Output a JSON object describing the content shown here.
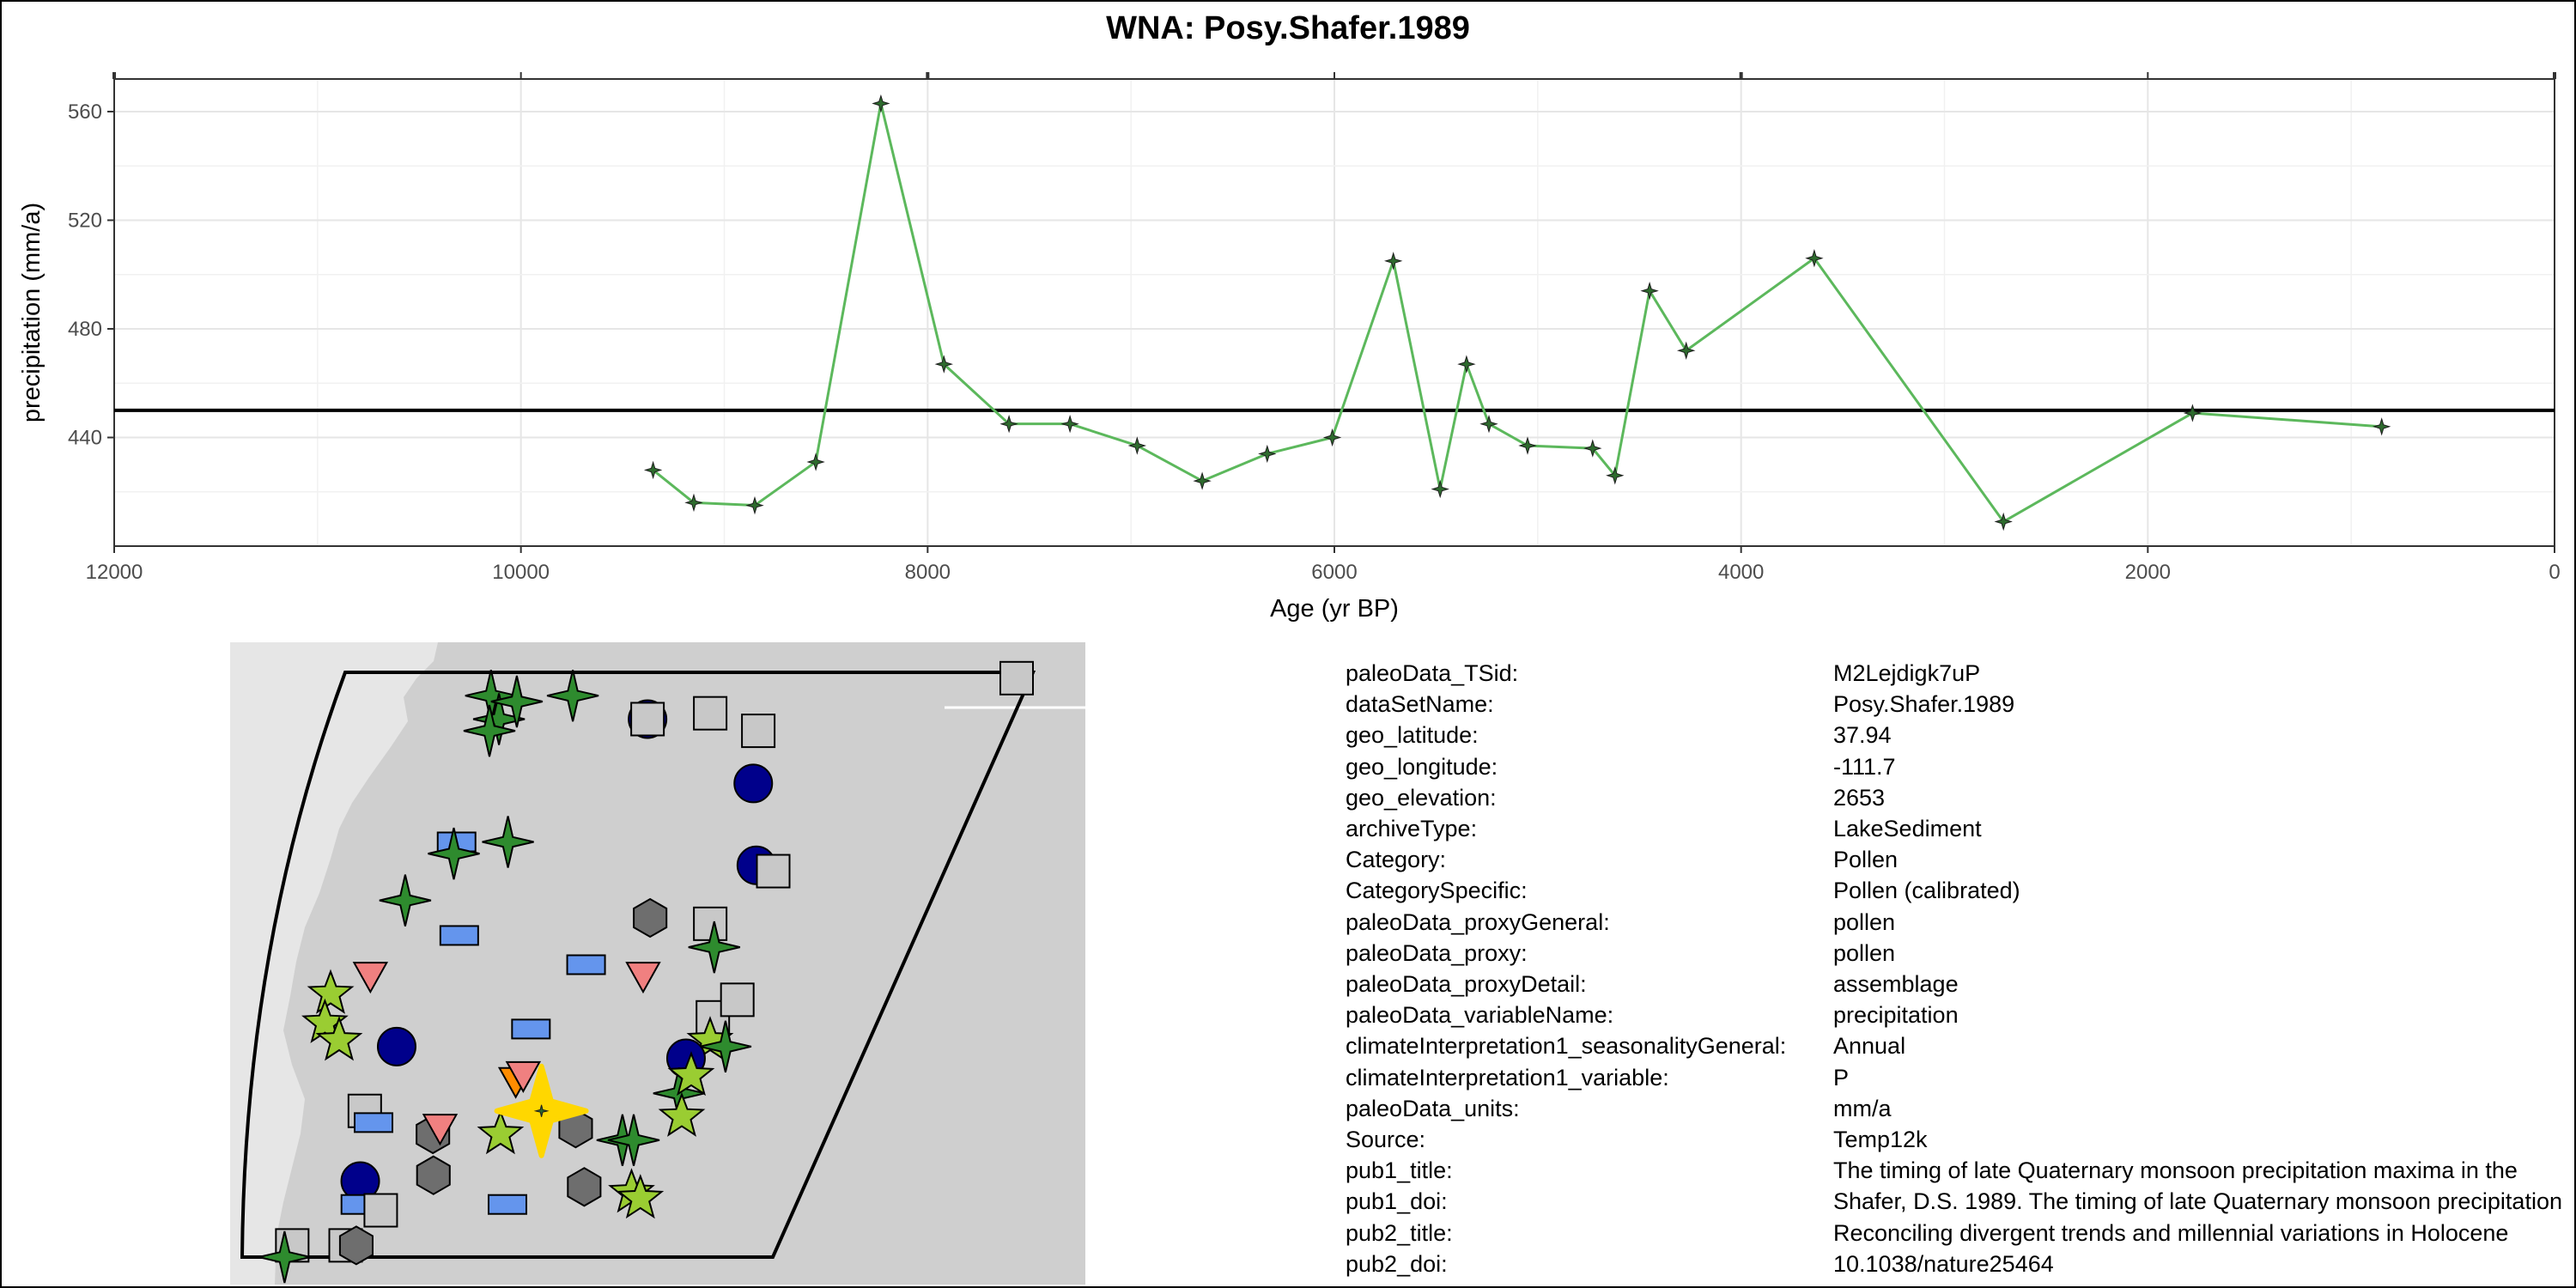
{
  "chart_data": {
    "type": "line",
    "title": "WNA: Posy.Shafer.1989",
    "xlabel": "Age (yr BP)",
    "ylabel": "precipitation (mm/a)",
    "xlim": [
      12000,
      0
    ],
    "x_reversed": true,
    "ylim": [
      400,
      572
    ],
    "xticks": [
      12000,
      10000,
      8000,
      6000,
      4000,
      2000,
      0
    ],
    "yticks": [
      440,
      480,
      520,
      560
    ],
    "reference_line_y": 450,
    "grid": true,
    "series": [
      {
        "color": "#5cb85c",
        "marker_color": "#2e6b2e",
        "x": [
          9350,
          9150,
          8850,
          8550,
          8230,
          7920,
          7600,
          7300,
          6970,
          6650,
          6330,
          6010,
          5710,
          5480,
          5350,
          5240,
          5050,
          4730,
          4620,
          4450,
          4270,
          3640,
          2710,
          1780,
          850
        ],
        "y": [
          428,
          416,
          415,
          431,
          563,
          467,
          445,
          445,
          437,
          424,
          434,
          440,
          505,
          421,
          467,
          445,
          437,
          436,
          426,
          494,
          472,
          506,
          409,
          449,
          444
        ]
      }
    ]
  },
  "map": {
    "background_color": "#cfcfcf",
    "land_color": "#e6e6e6",
    "outline_color": "#000000",
    "highlight_color": "#ffd700",
    "sites": [
      {
        "shape": "star4",
        "color": "#2e8b2e",
        "u": 0.22,
        "v": 0.04
      },
      {
        "shape": "star4",
        "color": "#2e8b2e",
        "u": 0.24,
        "v": 0.08
      },
      {
        "shape": "star4",
        "color": "#2e8b2e",
        "u": 0.26,
        "v": 0.05
      },
      {
        "shape": "star4",
        "color": "#2e8b2e",
        "u": 0.34,
        "v": 0.04
      },
      {
        "shape": "star4",
        "color": "#2e8b2e",
        "u": 0.23,
        "v": 0.1
      },
      {
        "shape": "circle",
        "color": "#00008b",
        "u": 0.46,
        "v": 0.08
      },
      {
        "shape": "square",
        "color": "#c8c8c8",
        "u": 0.46,
        "v": 0.08
      },
      {
        "shape": "square",
        "color": "#c8c8c8",
        "u": 0.55,
        "v": 0.07
      },
      {
        "shape": "square",
        "color": "#c8c8c8",
        "u": 0.63,
        "v": 0.1
      },
      {
        "shape": "square",
        "color": "#c8c8c8",
        "u": 0.98,
        "v": 0.01
      },
      {
        "shape": "circle",
        "color": "#00008b",
        "u": 0.65,
        "v": 0.19
      },
      {
        "shape": "rect",
        "color": "#6495ed",
        "u": 0.22,
        "v": 0.29
      },
      {
        "shape": "star4",
        "color": "#2e8b2e",
        "u": 0.22,
        "v": 0.31
      },
      {
        "shape": "star4",
        "color": "#2e8b2e",
        "u": 0.3,
        "v": 0.29
      },
      {
        "shape": "circle",
        "color": "#00008b",
        "u": 0.7,
        "v": 0.33
      },
      {
        "shape": "square",
        "color": "#c8c8c8",
        "u": 0.73,
        "v": 0.34
      },
      {
        "shape": "star4",
        "color": "#2e8b2e",
        "u": 0.16,
        "v": 0.39
      },
      {
        "shape": "hexagon",
        "color": "#6e6e6e",
        "u": 0.56,
        "v": 0.42
      },
      {
        "shape": "square",
        "color": "#c8c8c8",
        "u": 0.66,
        "v": 0.43
      },
      {
        "shape": "star4",
        "color": "#2e8b2e",
        "u": 0.68,
        "v": 0.47
      },
      {
        "shape": "rect",
        "color": "#6495ed",
        "u": 0.26,
        "v": 0.45
      },
      {
        "shape": "rect",
        "color": "#6495ed",
        "u": 0.48,
        "v": 0.5
      },
      {
        "shape": "triangle_down",
        "color": "#f08080",
        "u": 0.13,
        "v": 0.52
      },
      {
        "shape": "triangle_down",
        "color": "#f08080",
        "u": 0.58,
        "v": 0.52
      },
      {
        "shape": "star5",
        "color": "#9acd32",
        "u": 0.07,
        "v": 0.55
      },
      {
        "shape": "star5",
        "color": "#9acd32",
        "u": 0.07,
        "v": 0.6
      },
      {
        "shape": "star5",
        "color": "#9acd32",
        "u": 0.1,
        "v": 0.63
      },
      {
        "shape": "square",
        "color": "#c8c8c8",
        "u": 0.72,
        "v": 0.59
      },
      {
        "shape": "square",
        "color": "#c8c8c8",
        "u": 0.75,
        "v": 0.56
      },
      {
        "shape": "star5",
        "color": "#9acd32",
        "u": 0.73,
        "v": 0.63
      },
      {
        "shape": "star4",
        "color": "#2e8b2e",
        "u": 0.76,
        "v": 0.64
      },
      {
        "shape": "rect",
        "color": "#6495ed",
        "u": 0.42,
        "v": 0.61
      },
      {
        "shape": "circle",
        "color": "#00008b",
        "u": 0.2,
        "v": 0.64
      },
      {
        "shape": "circle",
        "color": "#00008b",
        "u": 0.7,
        "v": 0.66
      },
      {
        "shape": "triangle_down",
        "color": "#ff8c00",
        "u": 0.42,
        "v": 0.7
      },
      {
        "shape": "triangle_down",
        "color": "#f08080",
        "u": 0.43,
        "v": 0.69
      },
      {
        "shape": "star4",
        "color": "#2e8b2e",
        "u": 0.71,
        "v": 0.72
      },
      {
        "shape": "star5",
        "color": "#9acd32",
        "u": 0.72,
        "v": 0.69
      },
      {
        "shape": "star5",
        "color": "#9acd32",
        "u": 0.73,
        "v": 0.76
      },
      {
        "shape": "square",
        "color": "#c8c8c8",
        "u": 0.17,
        "v": 0.75
      },
      {
        "shape": "rect",
        "color": "#6495ed",
        "u": 0.19,
        "v": 0.77
      },
      {
        "shape": "hexagon",
        "color": "#6e6e6e",
        "u": 0.3,
        "v": 0.79
      },
      {
        "shape": "triangle_down",
        "color": "#f08080",
        "u": 0.31,
        "v": 0.78
      },
      {
        "shape": "star5",
        "color": "#9acd32",
        "u": 0.42,
        "v": 0.79
      },
      {
        "shape": "hexagon",
        "color": "#6e6e6e",
        "u": 0.55,
        "v": 0.78
      },
      {
        "shape": "star4",
        "color": "#2e8b2e",
        "u": 0.64,
        "v": 0.8
      },
      {
        "shape": "star4",
        "color": "#2e8b2e",
        "u": 0.66,
        "v": 0.8
      },
      {
        "shape": "circle",
        "color": "#00008b",
        "u": 0.19,
        "v": 0.87
      },
      {
        "shape": "hexagon",
        "color": "#6e6e6e",
        "u": 0.32,
        "v": 0.86
      },
      {
        "shape": "hexagon",
        "color": "#6e6e6e",
        "u": 0.6,
        "v": 0.88
      },
      {
        "shape": "star5",
        "color": "#9acd32",
        "u": 0.69,
        "v": 0.89
      },
      {
        "shape": "star5",
        "color": "#9acd32",
        "u": 0.71,
        "v": 0.9
      },
      {
        "shape": "rect",
        "color": "#6495ed",
        "u": 0.2,
        "v": 0.91
      },
      {
        "shape": "square",
        "color": "#c8c8c8",
        "u": 0.24,
        "v": 0.92
      },
      {
        "shape": "rect",
        "color": "#6495ed",
        "u": 0.47,
        "v": 0.91
      },
      {
        "shape": "square",
        "color": "#c8c8c8",
        "u": 0.09,
        "v": 0.98
      },
      {
        "shape": "star4",
        "color": "#2e8b2e",
        "u": 0.08,
        "v": 1.0
      },
      {
        "shape": "square",
        "color": "#c8c8c8",
        "u": 0.19,
        "v": 0.98
      },
      {
        "shape": "hexagon",
        "color": "#6e6e6e",
        "u": 0.21,
        "v": 0.98
      }
    ],
    "target": {
      "shape": "star4",
      "u": 0.48,
      "v": 0.75
    }
  },
  "metadata": [
    {
      "key": "paleoData_TSid:",
      "value": "M2Lejdigk7uP"
    },
    {
      "key": "dataSetName:",
      "value": "Posy.Shafer.1989"
    },
    {
      "key": "geo_latitude:",
      "value": "37.94"
    },
    {
      "key": "geo_longitude:",
      "value": "-111.7"
    },
    {
      "key": "geo_elevation:",
      "value": "2653"
    },
    {
      "key": "archiveType:",
      "value": "LakeSediment"
    },
    {
      "key": "Category:",
      "value": "Pollen"
    },
    {
      "key": "CategorySpecific:",
      "value": "Pollen (calibrated)"
    },
    {
      "key": "paleoData_proxyGeneral:",
      "value": "pollen"
    },
    {
      "key": "paleoData_proxy:",
      "value": "pollen"
    },
    {
      "key": "paleoData_proxyDetail:",
      "value": "assemblage"
    },
    {
      "key": "paleoData_variableName:",
      "value": "precipitation"
    },
    {
      "key": "climateInterpretation1_seasonalityGeneral:",
      "value": "Annual"
    },
    {
      "key": "climateInterpretation1_variable:",
      "value": "P"
    },
    {
      "key": "paleoData_units:",
      "value": "mm/a"
    },
    {
      "key": "Source:",
      "value": "Temp12k"
    },
    {
      "key": "pub1_title:",
      "value": "The timing of late Quaternary monsoon precipitation maxima in the"
    },
    {
      "key": "pub1_doi:",
      "value": "Shafer, D.S. 1989. The timing of late Quaternary monsoon precipitation"
    },
    {
      "key": "pub2_title:",
      "value": "Reconciling divergent trends and millennial variations in Holocene"
    },
    {
      "key": "pub2_doi:",
      "value": "10.1038/nature25464"
    }
  ]
}
